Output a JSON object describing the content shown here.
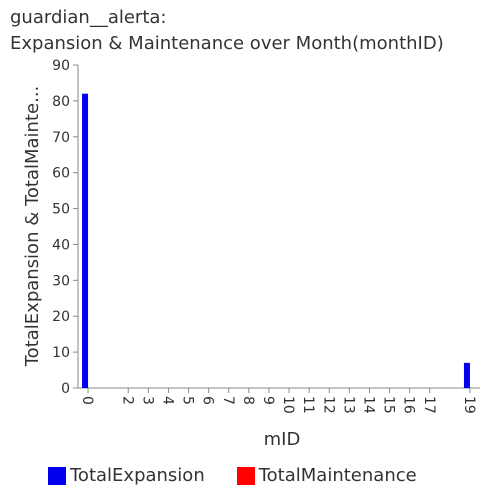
{
  "title_line1": "guardian__alerta:",
  "title_line2": "Expansion & Maintenance over Month(monthID)",
  "chart_data": {
    "type": "bar",
    "xlabel": "mID",
    "ylabel": "TotalExpansion & TotalMainte...",
    "ylim": [
      0,
      90
    ],
    "yticks": [
      0,
      10,
      20,
      30,
      40,
      50,
      60,
      70,
      80,
      90
    ],
    "categories": [
      "0",
      "2",
      "3",
      "4",
      "5",
      "6",
      "7",
      "8",
      "9",
      "10",
      "11",
      "12",
      "13",
      "14",
      "15",
      "16",
      "17",
      "19"
    ],
    "series": [
      {
        "name": "TotalExpansion",
        "color": "#0000ee",
        "values": [
          82,
          0,
          0,
          0,
          0,
          0,
          0,
          0,
          0,
          0,
          0,
          0,
          0,
          0,
          0,
          0,
          0,
          7
        ]
      },
      {
        "name": "TotalMaintenance",
        "color": "#ff0000",
        "values": [
          0,
          0,
          0,
          0,
          0,
          0,
          0,
          0,
          0,
          0,
          0,
          0,
          0,
          0,
          0,
          0,
          0,
          0
        ]
      }
    ],
    "legend_position": "bottom",
    "grid": false
  }
}
